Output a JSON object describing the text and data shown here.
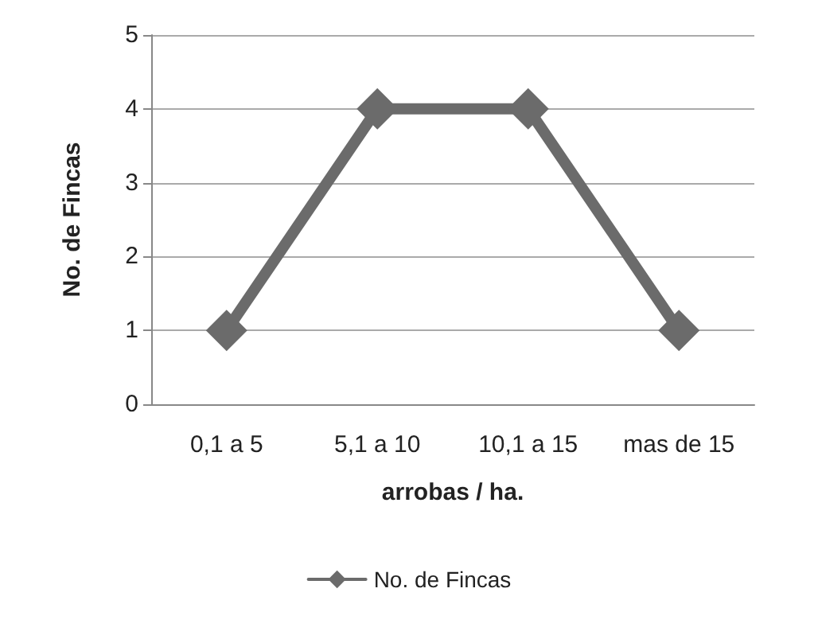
{
  "chart_data": {
    "type": "line",
    "xlabel": "arrobas / ha.",
    "ylabel": "No. de Fincas",
    "categories": [
      "0,1 a 5",
      "5,1 a 10",
      "10,1 a 15",
      "mas de 15"
    ],
    "series": [
      {
        "name": "No. de Fincas",
        "color": "#6b6b6b",
        "values": [
          1,
          4,
          4,
          1
        ]
      }
    ],
    "ylim": [
      0,
      5
    ],
    "yticks": [
      0,
      1,
      2,
      3,
      4,
      5
    ],
    "grid": "y",
    "legend": "bottom",
    "marker": "diamond",
    "line_style": "solid"
  }
}
